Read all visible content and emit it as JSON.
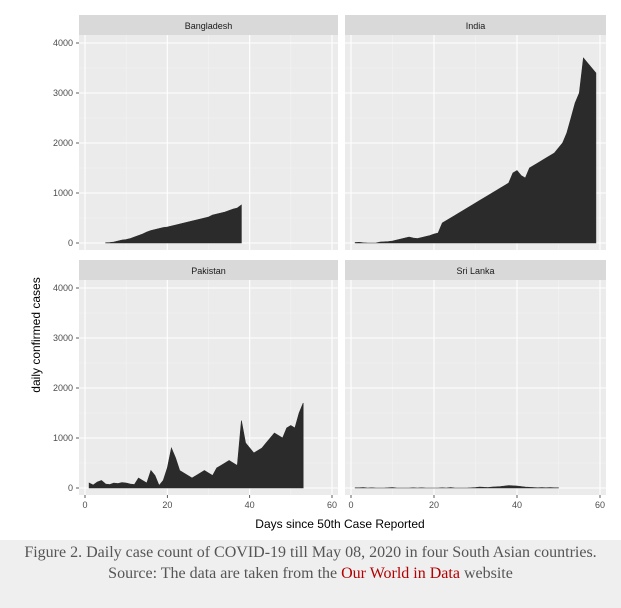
{
  "chart_data": {
    "type": "area",
    "facets": [
      {
        "name": "Bangladesh",
        "x": [
          5,
          6,
          7,
          8,
          9,
          10,
          11,
          12,
          13,
          14,
          15,
          16,
          17,
          18,
          19,
          20,
          21,
          22,
          23,
          24,
          25,
          26,
          27,
          28,
          29,
          30,
          31,
          32,
          33,
          34,
          35,
          36,
          37,
          38
        ],
        "values": [
          5,
          10,
          20,
          40,
          60,
          70,
          90,
          120,
          150,
          180,
          220,
          250,
          270,
          290,
          310,
          320,
          340,
          360,
          380,
          400,
          420,
          440,
          460,
          480,
          500,
          520,
          560,
          580,
          600,
          620,
          650,
          680,
          700,
          760
        ]
      },
      {
        "name": "India",
        "x": [
          1,
          2,
          3,
          4,
          5,
          6,
          7,
          8,
          9,
          10,
          11,
          12,
          13,
          14,
          15,
          16,
          17,
          18,
          19,
          20,
          21,
          22,
          23,
          24,
          25,
          26,
          27,
          28,
          29,
          30,
          31,
          32,
          33,
          34,
          35,
          36,
          37,
          38,
          39,
          40,
          41,
          42,
          43,
          44,
          45,
          46,
          47,
          48,
          49,
          50,
          51,
          52,
          53,
          54,
          55,
          56,
          57,
          58,
          59
        ],
        "values": [
          10,
          15,
          5,
          0,
          0,
          0,
          20,
          25,
          30,
          40,
          60,
          80,
          100,
          120,
          100,
          90,
          110,
          130,
          150,
          180,
          200,
          400,
          450,
          500,
          550,
          600,
          650,
          700,
          750,
          800,
          850,
          900,
          950,
          1000,
          1050,
          1100,
          1150,
          1200,
          1400,
          1450,
          1350,
          1300,
          1500,
          1550,
          1600,
          1650,
          1700,
          1750,
          1800,
          1900,
          2000,
          2200,
          2500,
          2800,
          3000,
          3700,
          3600,
          3500,
          3400
        ]
      },
      {
        "name": "Pakistan",
        "x": [
          1,
          2,
          3,
          4,
          5,
          6,
          7,
          8,
          9,
          10,
          11,
          12,
          13,
          14,
          15,
          16,
          17,
          18,
          19,
          20,
          21,
          22,
          23,
          24,
          25,
          26,
          27,
          28,
          29,
          30,
          31,
          32,
          33,
          34,
          35,
          36,
          37,
          38,
          39,
          40,
          41,
          42,
          43,
          44,
          45,
          46,
          47,
          48,
          49,
          50,
          51,
          52,
          53
        ],
        "values": [
          100,
          60,
          120,
          150,
          80,
          70,
          100,
          90,
          110,
          100,
          80,
          70,
          200,
          150,
          100,
          350,
          250,
          50,
          150,
          400,
          800,
          600,
          350,
          300,
          250,
          200,
          250,
          300,
          350,
          300,
          250,
          400,
          450,
          500,
          550,
          500,
          450,
          1350,
          900,
          800,
          700,
          750,
          800,
          900,
          1000,
          1100,
          1050,
          1000,
          1200,
          1250,
          1200,
          1500,
          1700
        ]
      },
      {
        "name": "Sri Lanka",
        "x": [
          1,
          2,
          3,
          4,
          5,
          6,
          7,
          8,
          9,
          10,
          11,
          12,
          13,
          14,
          15,
          16,
          17,
          18,
          19,
          20,
          21,
          22,
          23,
          24,
          25,
          26,
          27,
          28,
          29,
          30,
          31,
          32,
          33,
          34,
          35,
          36,
          37,
          38,
          39,
          40,
          41,
          42,
          43,
          44,
          45,
          46,
          47,
          48,
          49,
          50
        ],
        "values": [
          5,
          5,
          10,
          0,
          5,
          0,
          0,
          0,
          5,
          10,
          0,
          0,
          0,
          0,
          5,
          0,
          5,
          0,
          0,
          0,
          0,
          5,
          0,
          10,
          0,
          0,
          0,
          0,
          5,
          10,
          20,
          15,
          10,
          20,
          25,
          30,
          40,
          50,
          45,
          40,
          30,
          20,
          15,
          10,
          5,
          10,
          5,
          10,
          5,
          5
        ]
      }
    ],
    "xlabel": "Days since 50th Case Reported",
    "ylabel": "daily confirmed cases",
    "xlim": [
      0,
      60
    ],
    "ylim": [
      0,
      4000
    ],
    "x_ticks": [
      0,
      20,
      40,
      60
    ],
    "y_ticks": [
      0,
      1000,
      2000,
      3000,
      4000
    ],
    "grid": true,
    "colors": {
      "fill": "#2b2b2b",
      "panel_bg": "#ebebeb",
      "strip_bg": "#d9d9d9",
      "grid_major": "#ffffff",
      "grid_minor": "#f4f4f4"
    }
  },
  "caption": {
    "text": "Figure 2. Daily case count of COVID-19 till May 08, 2020 in four South Asian countries. Source: The data are taken from the",
    "link": "Our World in Data",
    "suffix": "website"
  }
}
